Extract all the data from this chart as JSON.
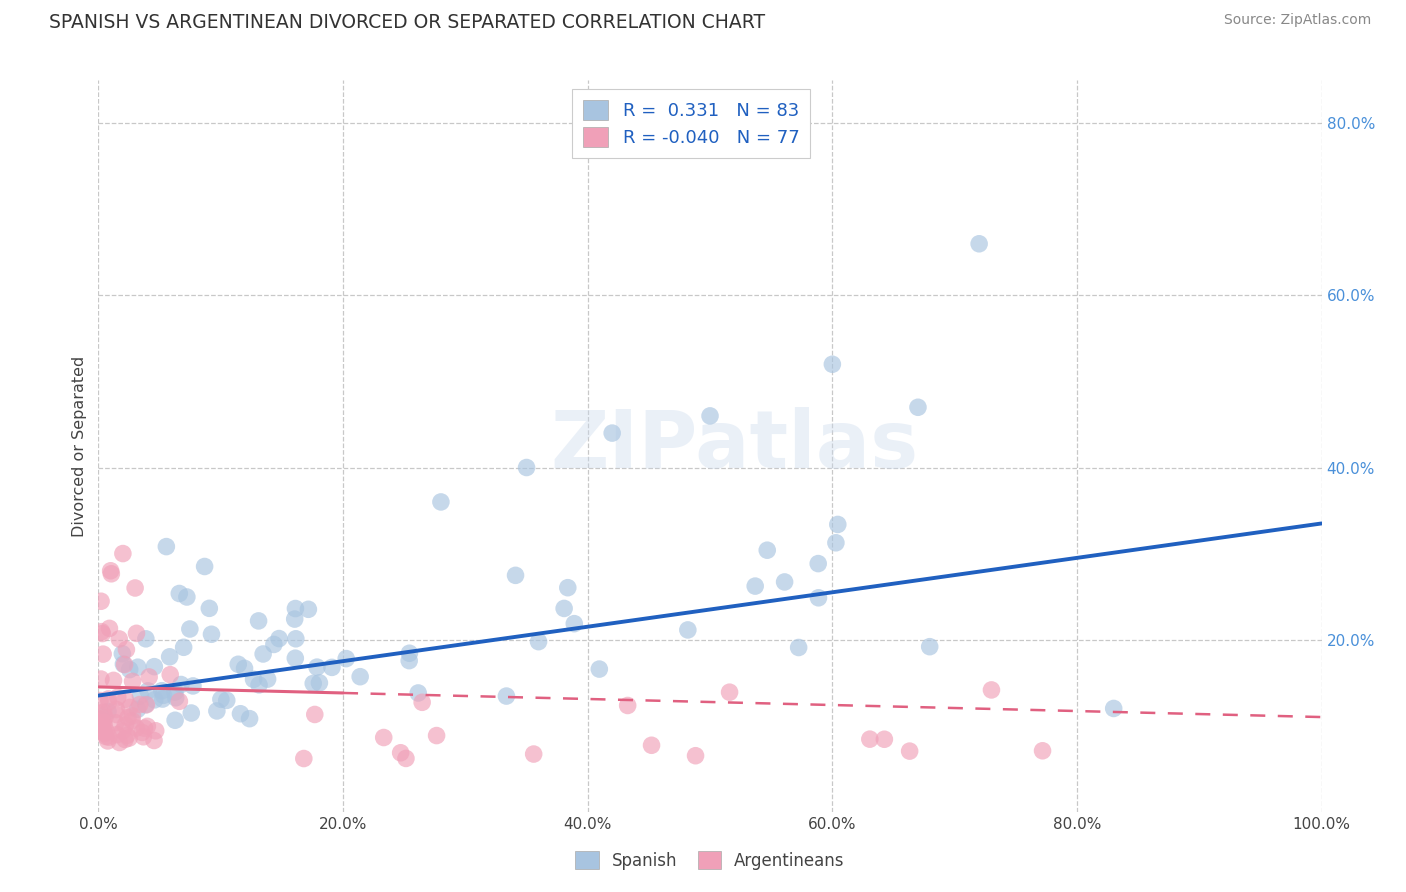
{
  "title": "SPANISH VS ARGENTINEAN DIVORCED OR SEPARATED CORRELATION CHART",
  "source": "Source: ZipAtlas.com",
  "ylabel": "Divorced or Separated",
  "xlim": [
    0.0,
    1.0
  ],
  "ylim": [
    0.0,
    0.85
  ],
  "xtick_labels": [
    "0.0%",
    "20.0%",
    "40.0%",
    "60.0%",
    "80.0%",
    "100.0%"
  ],
  "xtick_vals": [
    0.0,
    0.2,
    0.4,
    0.6,
    0.8,
    1.0
  ],
  "ytick_labels": [
    "20.0%",
    "40.0%",
    "60.0%",
    "80.0%"
  ],
  "ytick_vals": [
    0.2,
    0.4,
    0.6,
    0.8
  ],
  "background_color": "#ffffff",
  "grid_color": "#c8c8c8",
  "spanish_color": "#a8c4e0",
  "argentinean_color": "#f0a0b8",
  "spanish_line_color": "#2060c0",
  "argentinean_line_color": "#e06080",
  "R_spanish": 0.331,
  "N_spanish": 83,
  "R_argentinean": -0.04,
  "N_argentinean": 77,
  "watermark": "ZIPatlas",
  "legend_label_spanish": "Spanish",
  "legend_label_argentinean": "Argentineans"
}
